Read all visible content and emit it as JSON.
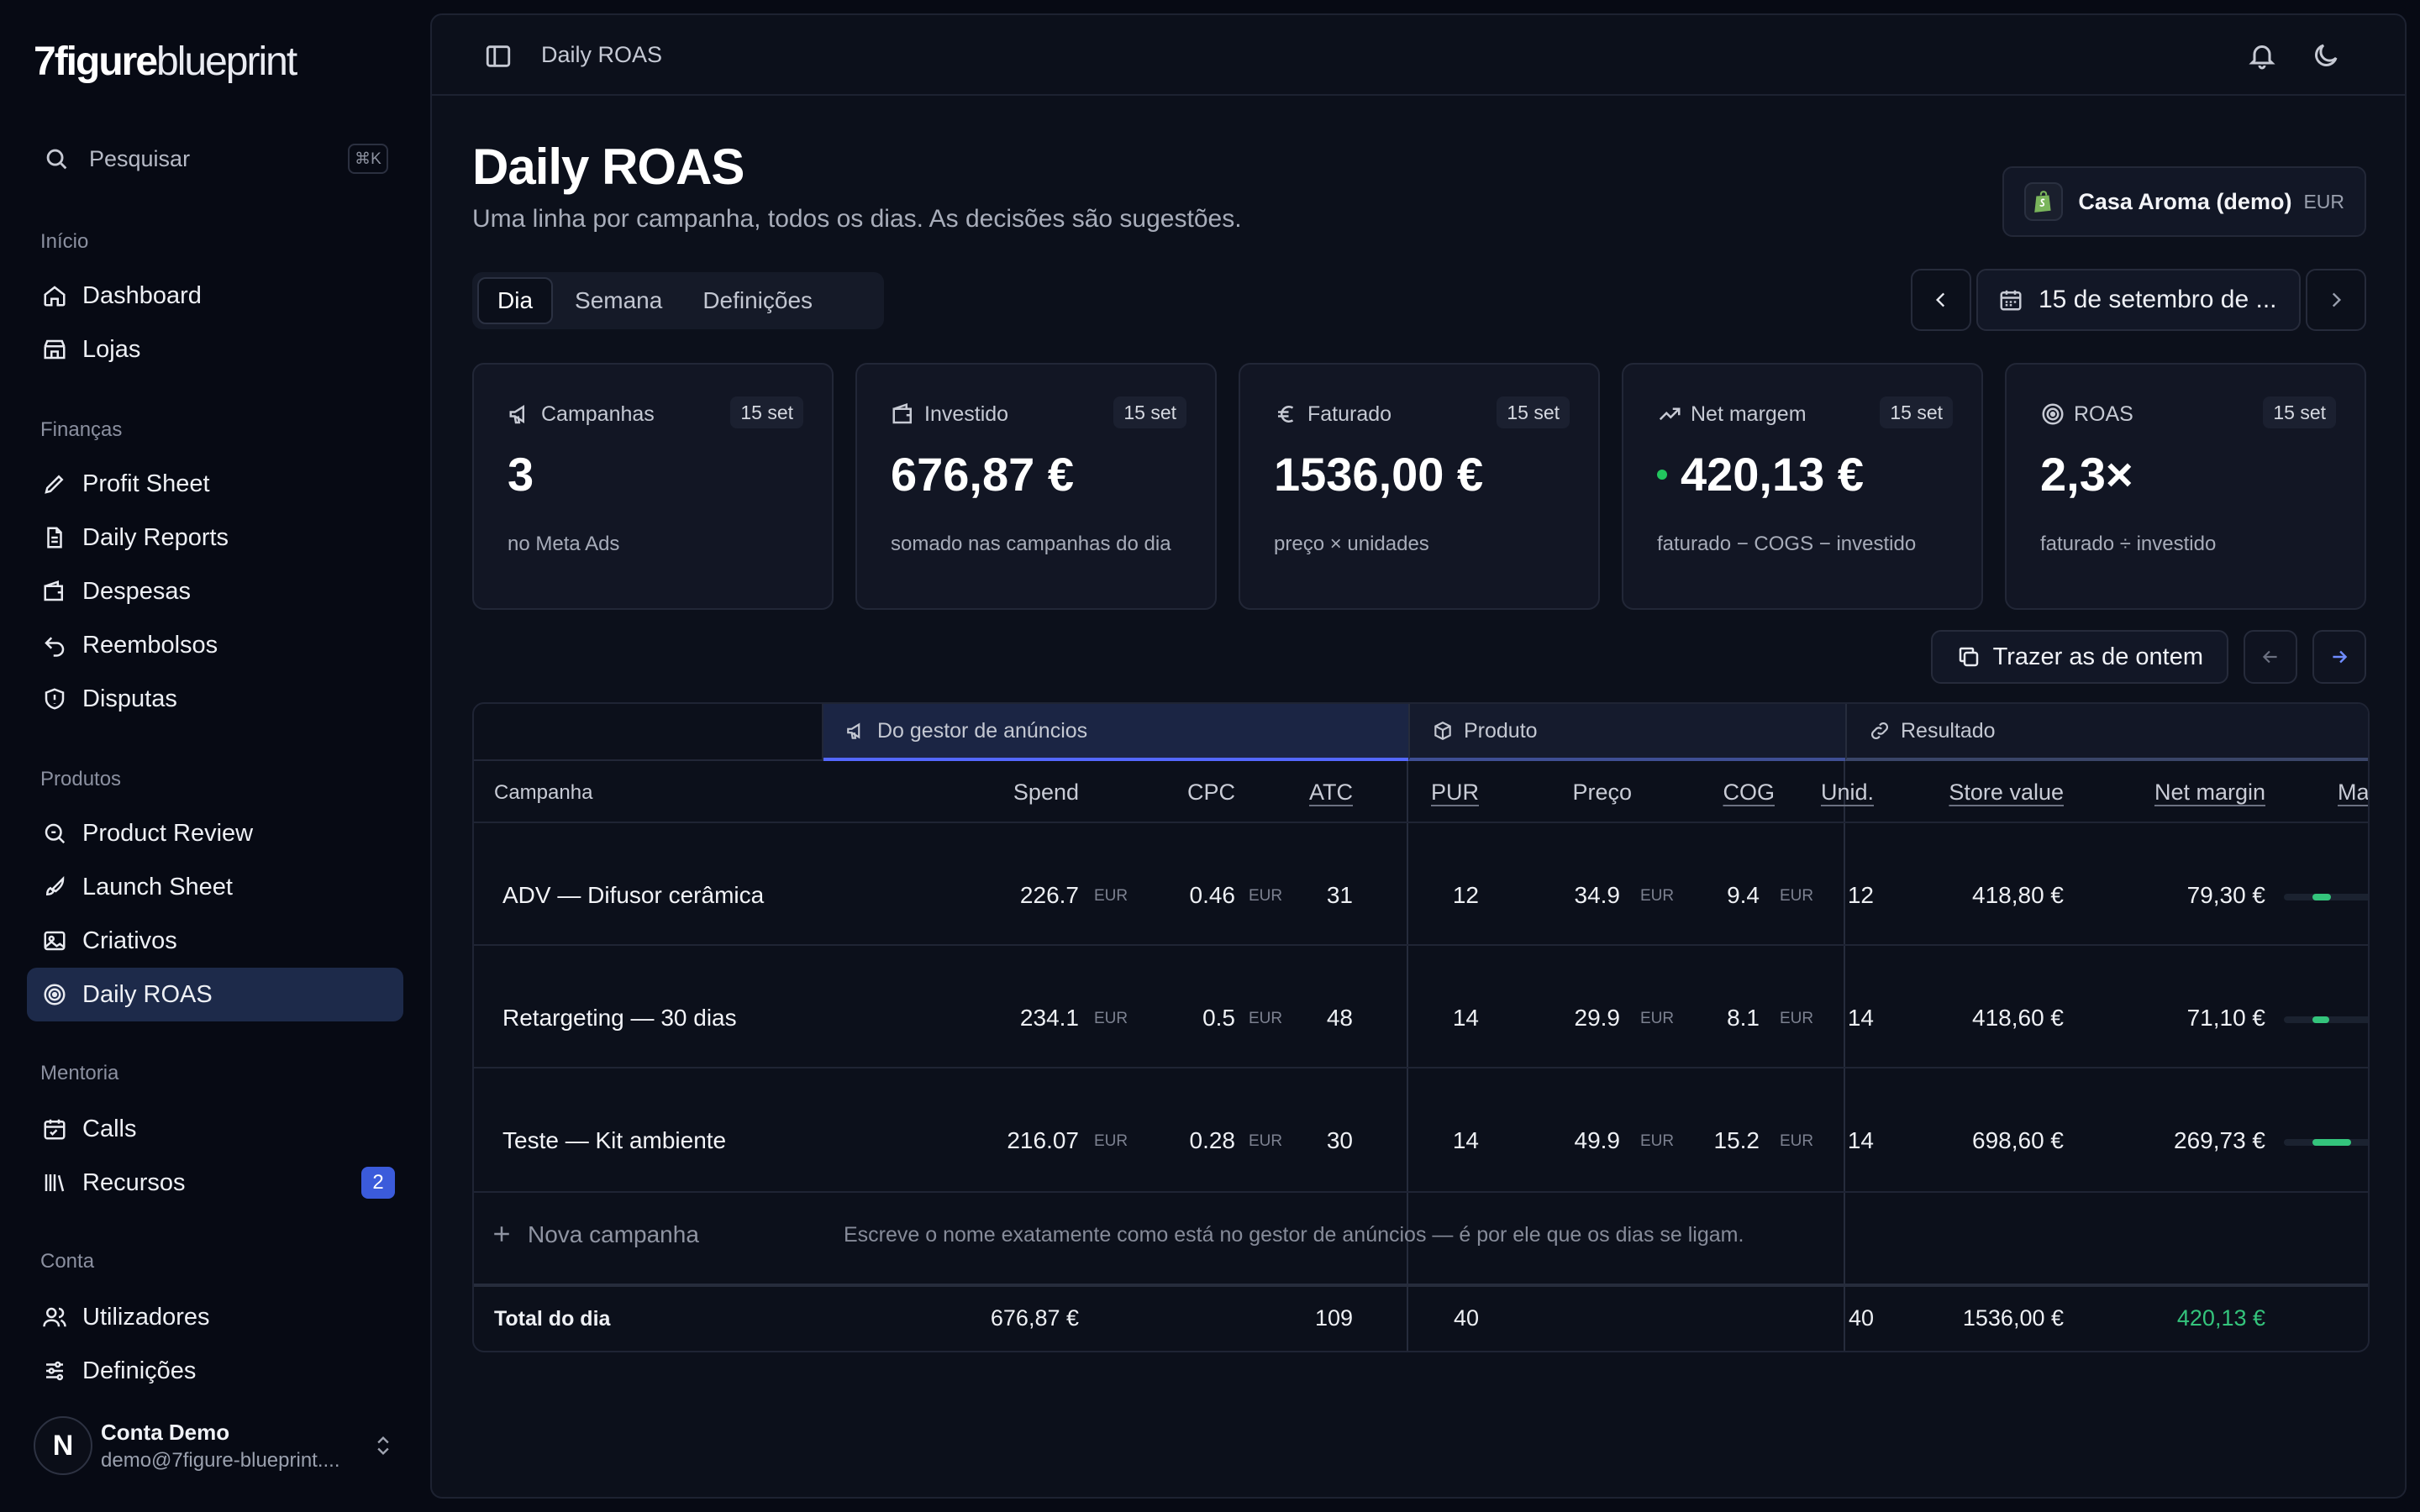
{
  "brand": {
    "bold": "7figure",
    "light": "blueprint"
  },
  "search": {
    "label": "Pesquisar",
    "shortcut": "⌘K"
  },
  "nav": {
    "sections": [
      {
        "title": "Início",
        "items": [
          {
            "label": "Dashboard",
            "icon": "home-icon"
          },
          {
            "label": "Lojas",
            "icon": "store-icon"
          }
        ]
      },
      {
        "title": "Finanças",
        "items": [
          {
            "label": "Profit Sheet",
            "icon": "pencil-icon"
          },
          {
            "label": "Daily Reports",
            "icon": "file-icon"
          },
          {
            "label": "Despesas",
            "icon": "wallet-icon"
          },
          {
            "label": "Reembolsos",
            "icon": "undo-icon"
          },
          {
            "label": "Disputas",
            "icon": "shield-icon"
          }
        ]
      },
      {
        "title": "Produtos",
        "items": [
          {
            "label": "Product Review",
            "icon": "search-file-icon"
          },
          {
            "label": "Launch Sheet",
            "icon": "rocket-icon"
          },
          {
            "label": "Criativos",
            "icon": "image-icon"
          },
          {
            "label": "Daily ROAS",
            "icon": "target-icon",
            "active": true
          }
        ]
      },
      {
        "title": "Mentoria",
        "items": [
          {
            "label": "Calls",
            "icon": "calendar-icon"
          },
          {
            "label": "Recursos",
            "icon": "library-icon",
            "badge": "2"
          }
        ]
      },
      {
        "title": "Conta",
        "items": [
          {
            "label": "Utilizadores",
            "icon": "users-icon"
          },
          {
            "label": "Definições",
            "icon": "sliders-icon"
          }
        ]
      }
    ]
  },
  "user": {
    "initial": "N",
    "name": "Conta Demo",
    "email": "demo@7figure-blueprint...."
  },
  "topbar": {
    "breadcrumb": "Daily ROAS"
  },
  "page": {
    "title": "Daily ROAS",
    "subtitle": "Uma linha por campanha, todos os dias. As decisões são sugestões."
  },
  "store": {
    "name": "Casa Aroma (demo)",
    "currency": "EUR"
  },
  "tabs": [
    "Dia",
    "Semana",
    "Definições"
  ],
  "date_picker": {
    "value": "15 de setembro de ..."
  },
  "kpis": [
    {
      "label": "Campanhas",
      "date": "15 set",
      "value": "3",
      "desc": "no Meta Ads",
      "icon": "megaphone-icon"
    },
    {
      "label": "Investido",
      "date": "15 set",
      "value": "676,87 €",
      "desc": "somado nas campanhas do dia",
      "icon": "wallet-icon"
    },
    {
      "label": "Faturado",
      "date": "15 set",
      "value": "1536,00 €",
      "desc": "preço × unidades",
      "icon": "euro-icon"
    },
    {
      "label": "Net margem",
      "date": "15 set",
      "value": "420,13 €",
      "desc": "faturado − COGS − investido",
      "icon": "trending-up-icon"
    },
    {
      "label": "ROAS",
      "date": "15 set",
      "value": "2,3×",
      "desc": "faturado ÷ investido",
      "icon": "target-icon"
    }
  ],
  "actions": {
    "bring_yesterday": "Trazer as de ontem"
  },
  "table": {
    "groups": {
      "ads": "Do gestor de anúncios",
      "product": "Produto",
      "result": "Resultado"
    },
    "columns": {
      "campaign": "Campanha",
      "spend": "Spend",
      "cpc": "CPC",
      "atc": "ATC",
      "pur": "PUR",
      "price": "Preço",
      "cog": "COG",
      "units": "Unid.",
      "store_value": "Store value",
      "net_margin": "Net margin",
      "margin_trunc": "Ma"
    },
    "unit": "EUR",
    "rows": [
      {
        "name": "ADV — Difusor cerâmica",
        "spend": "226.7",
        "cpc": "0.46",
        "atc": "31",
        "pur": "12",
        "price": "34.9",
        "cog": "9.4",
        "units": "12",
        "store_value": "418,80 €",
        "net_margin": "79,30 €",
        "margin_bar": 0.19
      },
      {
        "name": "Retargeting — 30 dias",
        "spend": "234.1",
        "cpc": "0.5",
        "atc": "48",
        "pur": "14",
        "price": "29.9",
        "cog": "8.1",
        "units": "14",
        "store_value": "418,60 €",
        "net_margin": "71,10 €",
        "margin_bar": 0.17
      },
      {
        "name": "Teste — Kit ambiente",
        "spend": "216.07",
        "cpc": "0.28",
        "atc": "30",
        "pur": "14",
        "price": "49.9",
        "cog": "15.2",
        "units": "14",
        "store_value": "698,60 €",
        "net_margin": "269,73 €",
        "margin_bar": 0.39
      }
    ],
    "new_campaign": "Nova campanha",
    "new_hint": "Escreve o nome exatamente como está no gestor de anúncios — é por ele que os dias se ligam.",
    "totals": {
      "label": "Total do dia",
      "spend": "676,87 €",
      "atc": "109",
      "pur": "40",
      "units": "40",
      "store_value": "1536,00 €",
      "net_margin": "420,13 €"
    }
  },
  "colors": {
    "accent": "#5468ff",
    "positive": "#22c55e",
    "active_nav": "#1d2a4a"
  }
}
